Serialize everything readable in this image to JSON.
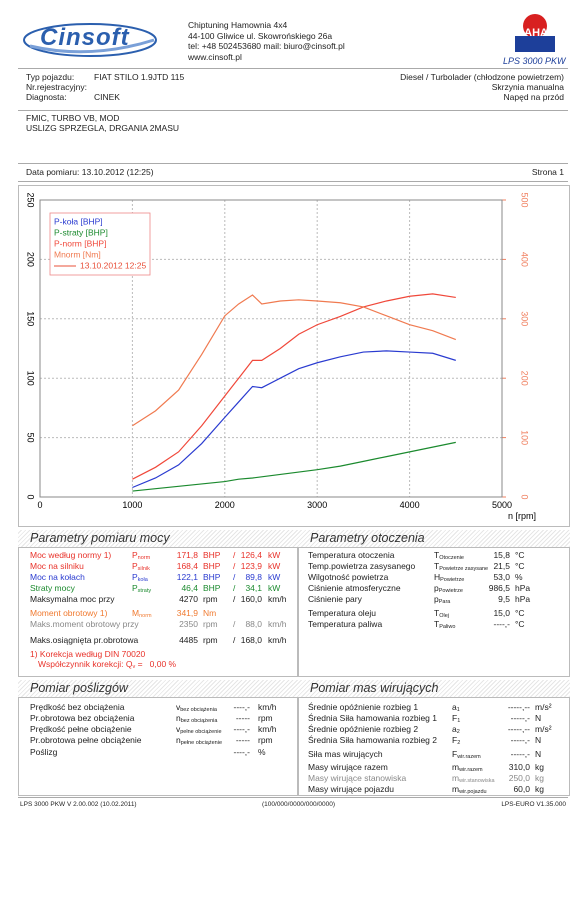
{
  "header": {
    "logo": "Cinsoft",
    "company": [
      "Chiptuning  Hamownia 4x4",
      "44-100 Gliwice ul. Skowrońskiego 26a",
      "tel: +48 502453680  mail: biuro@cinsoft.pl",
      "www.cinsoft.pl"
    ],
    "brand": "MAHA",
    "model": "LPS 3000 PKW"
  },
  "vehicle": {
    "left": [
      {
        "label": "Typ pojazdu:",
        "value": "FIAT STILO 1.9JTD 115"
      },
      {
        "label": "Nr.rejestracyjny:"
      },
      {
        "label": "Diagnosta:",
        "value": "CINEK"
      }
    ],
    "right": [
      "Diesel / Turbolader (chłodzone powietrzem)",
      "Skrzynia manualna",
      "Napęd na przód"
    ]
  },
  "notes": [
    "FMIC, TURBO VB, MOD",
    "USLIZG SPRZEGLA, DRGANIA 2MASU"
  ],
  "date": "Data pomiaru: 13.10.2012 (12:25)",
  "page": "Strona 1",
  "chart_data": {
    "type": "line",
    "xlabel": "n [rpm]",
    "legend_note": "13.10.2012 12:25",
    "legend_note_color": "#e8503a",
    "x": [
      1000,
      1250,
      1500,
      1750,
      2000,
      2150,
      2300,
      2400,
      2600,
      2800,
      3000,
      3250,
      3500,
      3750,
      4000,
      4250,
      4500
    ],
    "series": [
      {
        "name": "P-koła [BHP]",
        "color": "#2a3bd0",
        "values": [
          8,
          16,
          27,
          45,
          67,
          80,
          93,
          92,
          100,
          108,
          113,
          118,
          122,
          123,
          122,
          121,
          115
        ]
      },
      {
        "name": "P-straty [BHP]",
        "color": "#1b8a2e",
        "values": [
          5,
          7,
          9,
          11,
          13,
          15,
          16,
          17,
          19,
          21,
          23,
          26,
          30,
          34,
          38,
          42,
          46
        ]
      },
      {
        "name": "P-norm [BHP]",
        "color": "#f0483a",
        "values": [
          15,
          25,
          38,
          60,
          85,
          100,
          115,
          115,
          125,
          137,
          145,
          152,
          160,
          165,
          169,
          171,
          168
        ]
      },
      {
        "name": "Mnorm [Nm]",
        "color": "#f07a50",
        "axis": "y2",
        "values": [
          120,
          145,
          180,
          240,
          305,
          325,
          340,
          325,
          330,
          332,
          330,
          327,
          320,
          305,
          290,
          280,
          265
        ]
      }
    ],
    "xlim": [
      0,
      5000
    ],
    "xticks": [
      0,
      1000,
      2000,
      3000,
      4000,
      5000
    ],
    "ylim": [
      0,
      250
    ],
    "yticks": [
      0,
      50,
      100,
      150,
      200,
      250
    ],
    "y2lim": [
      0,
      500
    ],
    "y2ticks": [
      0,
      100,
      200,
      300,
      400,
      500
    ],
    "y2color": "#f08060",
    "grid": true
  },
  "power": {
    "title": "Parametry pomiaru mocy",
    "separator": "/",
    "rows": [
      {
        "label": "Moc według normy 1)",
        "symbol": {
          "main": "P",
          "sub": "norm"
        },
        "value": "171,8",
        "unit": "BHP",
        "value2": "126,4",
        "unit2": "kW",
        "color": "#e8322a"
      },
      {
        "label": "Moc na silniku",
        "symbol": {
          "main": "P",
          "sub": "silnik"
        },
        "value": "168,4",
        "unit": "BHP",
        "value2": "123,9",
        "unit2": "kW",
        "color": "#e8322a"
      },
      {
        "label": "Moc na kołach",
        "symbol": {
          "main": "P",
          "sub": "koła"
        },
        "value": "122,1",
        "unit": "BHP",
        "value2": "89,8",
        "unit2": "kW",
        "color": "#2a3bd0"
      },
      {
        "label": "Straty mocy",
        "symbol": {
          "main": "P",
          "sub": "straty"
        },
        "value": "46,4",
        "unit": "BHP",
        "value2": "34,1",
        "unit2": "kW",
        "color": "#1b8a2e"
      },
      {
        "label": "Maksymalna moc przy",
        "value": "4270",
        "unit": "rpm",
        "value2": "160,0",
        "unit2": "km/h",
        "color": "#222222"
      },
      {
        "label": "Moment obrotowy 1)",
        "symbol": {
          "main": "M",
          "sub": "norm"
        },
        "value": "341,9",
        "unit": "Nm",
        "color": "#f07a30"
      },
      {
        "label": "Maks.moment obrotowy przy",
        "value": "2350",
        "unit": "rpm",
        "value2": "88,0",
        "unit2": "km/h",
        "color": "#888888"
      },
      {
        "label": "Maks.osiągnięta pr.obrotowa",
        "value": "4485",
        "unit": "rpm",
        "value2": "168,0",
        "unit2": "km/h",
        "color": "#222222"
      }
    ],
    "footnote": "1) Korekcja według DIN 70020",
    "coefficient": {
      "label": "Współczynnik korekcji: ",
      "symbol": {
        "main": "Q",
        "sub": "v"
      },
      "value": " =   0,00 %"
    }
  },
  "environment": {
    "title": "Parametry otoczenia",
    "rows": [
      {
        "label": "Temperatura otoczenia",
        "symbol": {
          "main": "T",
          "sub": "Otoczenie"
        },
        "value": "15,8",
        "unit": "°C"
      },
      {
        "label": "Temp.powietrza zasysanego",
        "symbol": {
          "main": "T",
          "sub": "Powietrze zasysane"
        },
        "value": "21,5",
        "unit": "°C"
      },
      {
        "label": "Wilgotność powietrza",
        "symbol": {
          "main": "H",
          "sub": "Powietrze"
        },
        "value": "53,0",
        "unit": "%"
      },
      {
        "label": "Ciśnienie atmosferyczne",
        "symbol": {
          "main": "p",
          "sub": "Powietrze"
        },
        "value": "986,5",
        "unit": "hPa"
      },
      {
        "label": "Ciśnienie pary",
        "symbol": {
          "main": "p",
          "sub": "Para"
        },
        "value": "9,5",
        "unit": "hPa"
      },
      {
        "label": "Temperatura oleju",
        "symbol": {
          "main": "T",
          "sub": "Olej"
        },
        "value": "15,0",
        "unit": "°C"
      },
      {
        "label": "Temperatura paliwa",
        "symbol": {
          "main": "T",
          "sub": "Paliwo"
        },
        "value": "----,-",
        "unit": "°C"
      }
    ]
  },
  "slip": {
    "title": "Pomiar poślizgów",
    "rows": [
      {
        "label": "Prędkość bez obciążenia",
        "symbol": {
          "main": "v",
          "sub": "bez obciążenia"
        },
        "value": "----,-",
        "unit": "km/h"
      },
      {
        "label": "Pr.obrotowa bez obciążenia",
        "symbol": {
          "main": "n",
          "sub": "bez obciążenia"
        },
        "value": "-----",
        "unit": "rpm"
      },
      {
        "label": "Prędkość pełne obciążenie",
        "symbol": {
          "main": "v",
          "sub": "pełne obciążenie"
        },
        "value": "----,-",
        "unit": "km/h"
      },
      {
        "label": "Pr.obrotowa pełne obciążenie",
        "symbol": {
          "main": "n",
          "sub": "pełne obciążenie"
        },
        "value": "-----",
        "unit": "rpm"
      },
      {
        "label": "Poślizg",
        "value": "----,-",
        "unit": "%"
      }
    ]
  },
  "mass": {
    "title": "Pomiar mas wirujących",
    "rows": [
      {
        "label": "Średnie opóźnienie rozbieg 1",
        "symbol": {
          "main": "a",
          "sub": "1"
        },
        "value": "-----,--",
        "unit": "m/s²"
      },
      {
        "label": "Średnia Siła hamowania rozbieg 1",
        "symbol": {
          "main": "F",
          "sub": "1"
        },
        "value": "-----,-",
        "unit": "N"
      },
      {
        "label": "Średnie opóźnienie rozbieg 2",
        "symbol": {
          "main": "a",
          "sub": "2"
        },
        "value": "-----,--",
        "unit": "m/s²"
      },
      {
        "label": "Średnia Siła hamowania rozbieg 2",
        "symbol": {
          "main": "F",
          "sub": "2"
        },
        "value": "-----,-",
        "unit": "N"
      },
      {
        "label": "Siła mas wirujących",
        "symbol": {
          "main": "F",
          "sub": "wir.razem"
        },
        "value": "-----,-",
        "unit": "N"
      },
      {
        "label": "Masy wirujące razem",
        "symbol": {
          "main": "m",
          "sub": "wir.razem"
        },
        "value": "310,0",
        "unit": "kg"
      },
      {
        "label": "Masy wirujące stanowiska",
        "symbol": {
          "main": "m",
          "sub": "wir.stanowiska"
        },
        "value": "250,0",
        "unit": "kg",
        "color": "#888888"
      },
      {
        "label": "Masy wirujące pojazdu",
        "symbol": {
          "main": "m",
          "sub": "wir.pojazdu"
        },
        "value": "60,0",
        "unit": "kg"
      }
    ]
  },
  "footer": [
    "LPS 3000 PKW V 2.00.002 (10.02.2011)",
    "(100/000/0000/000/0000)",
    "LPS-EURO V1.35.000"
  ]
}
